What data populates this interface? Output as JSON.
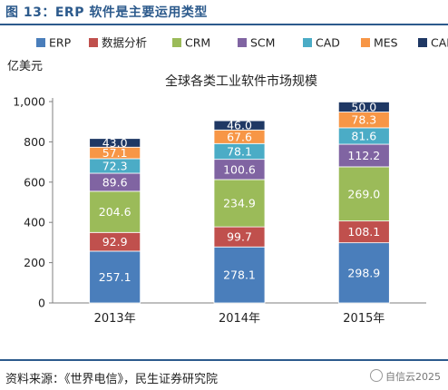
{
  "figure_title": "图 13：ERP 软件是主要运用类型",
  "source_note": "资料来源：《世界电信》，民生证券研究院",
  "watermark": "自信云2025",
  "chart_data": {
    "type": "bar",
    "stacked": true,
    "title": "全球各类工业软件市场规模",
    "ylabel": "亿美元",
    "xlabel": "",
    "ylim": [
      0,
      1000
    ],
    "yticks": [
      "0",
      "200",
      "400",
      "600",
      "800",
      "1,000"
    ],
    "categories": [
      "2013年",
      "2014年",
      "2015年"
    ],
    "legend_position": "top",
    "grid": false,
    "series": [
      {
        "name": "ERP",
        "color": "#4a7ebb",
        "values": [
          257.1,
          278.1,
          298.9
        ]
      },
      {
        "name": "数据分析",
        "color": "#c0504d",
        "values": [
          92.9,
          99.7,
          108.1
        ]
      },
      {
        "name": "CRM",
        "color": "#9bbb59",
        "values": [
          204.6,
          234.9,
          269.0
        ]
      },
      {
        "name": "SCM",
        "color": "#8064a2",
        "values": [
          89.6,
          100.6,
          112.2
        ]
      },
      {
        "name": "CAD",
        "color": "#4bacc6",
        "values": [
          72.3,
          78.1,
          81.6
        ]
      },
      {
        "name": "MES",
        "color": "#f79646",
        "values": [
          57.1,
          67.6,
          78.3
        ]
      },
      {
        "name": "CAE",
        "color": "#1f3864",
        "values": [
          43.0,
          46.0,
          50.0
        ]
      }
    ],
    "data_labels": [
      [
        "257.1",
        "92.9",
        "204.6",
        "89.6",
        "72.3",
        "57.1",
        "43.0"
      ],
      [
        "278.1",
        "99.7",
        "234.9",
        "100.6",
        "78.1",
        "67.6",
        "46.0"
      ],
      [
        "298.9",
        "108.1",
        "269.0",
        "112.2",
        "81.6",
        "78.3",
        "50.0"
      ]
    ]
  }
}
